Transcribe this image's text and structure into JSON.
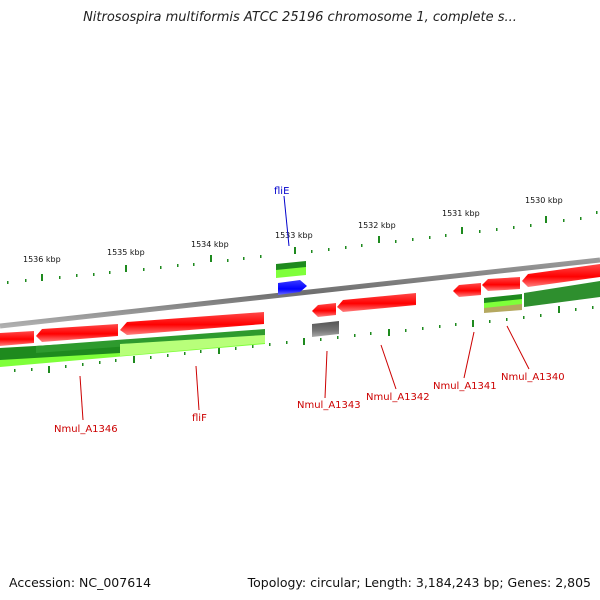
{
  "title": "Nitrosospira multiformis ATCC 25196 chromosome 1, complete s...",
  "footer": {
    "accession": "Accession: NC_007614",
    "stats": "Topology: circular; Length: 3,184,243 bp; Genes: 2,805"
  },
  "scale": {
    "unit": "kbp",
    "labels": [
      "1536 kbp",
      "1535 kbp",
      "1534 kbp",
      "1533 kbp",
      "1532 kbp",
      "1531 kbp",
      "1530 kbp"
    ]
  },
  "gene_labels": [
    {
      "text": "fliE",
      "strand": "top"
    },
    {
      "text": "Nmul_A1346",
      "strand": "bottom"
    },
    {
      "text": "fliF",
      "strand": "bottom"
    },
    {
      "text": "Nmul_A1343",
      "strand": "bottom"
    },
    {
      "text": "Nmul_A1342",
      "strand": "bottom"
    },
    {
      "text": "Nmul_A1341",
      "strand": "bottom"
    },
    {
      "text": "Nmul_A1340",
      "strand": "bottom"
    }
  ],
  "colors": {
    "gene_red": "#ff0000",
    "gene_blue": "#0000ff",
    "gene_gray": "#666666",
    "cds_dark_green": "#1e8a1e",
    "cds_light_green": "#7fff3a",
    "label_top": "#0000cc",
    "label_bottom": "#cc0000",
    "tick": "#228b22"
  }
}
